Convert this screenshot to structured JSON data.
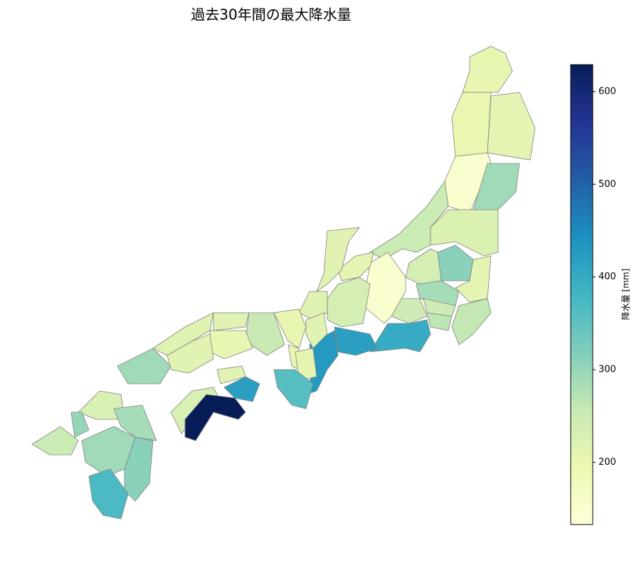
{
  "chart_data": {
    "type": "choropleth",
    "title": "過去30年間の最大降水量",
    "values": [
      205,
      200,
      210,
      150,
      290,
      225,
      250,
      310,
      210,
      235,
      285,
      260,
      245,
      265,
      245,
      150,
      400,
      420,
      430,
      235,
      210,
      215,
      220,
      215,
      205,
      255,
      205,
      210,
      360,
      215,
      205,
      220,
      215,
      290,
      420,
      215,
      230,
      629,
      230,
      300,
      250,
      285,
      290,
      310,
      370
    ],
    "colormap": "YlGnBu",
    "edgecolor": "#808080",
    "colorbar_label": "降水量 [mm]",
    "clim": [
      133,
      629
    ],
    "ticks": [
      200,
      300,
      400,
      500,
      600
    ]
  }
}
